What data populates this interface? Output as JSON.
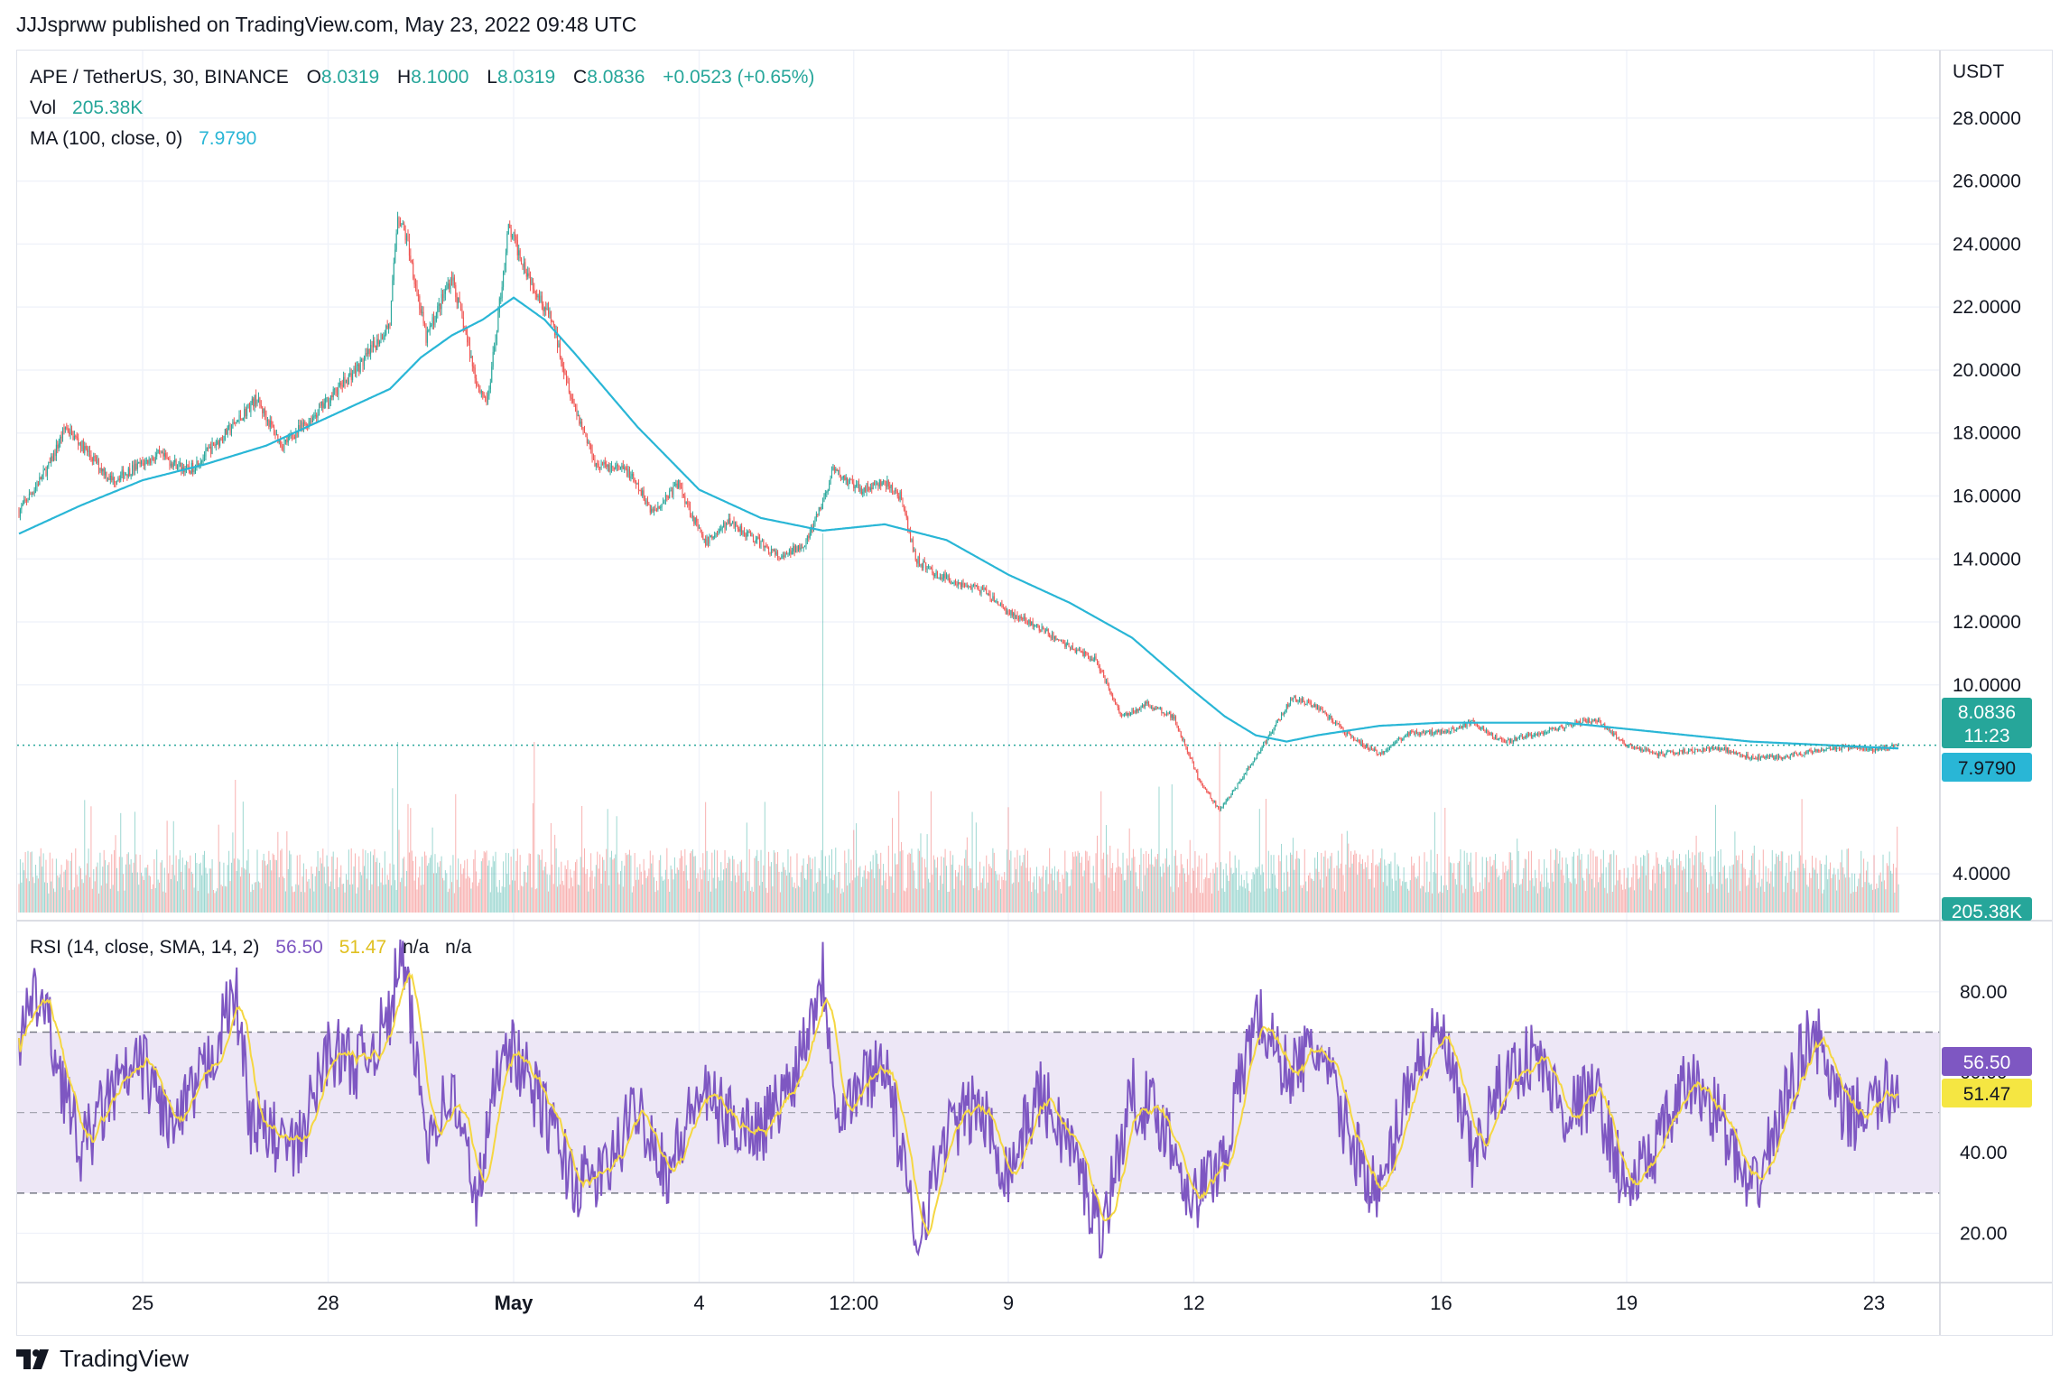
{
  "header": {
    "published": "JJJsprww published on TradingView.com, May 23, 2022 09:48 UTC"
  },
  "footer": {
    "brand": "TradingView"
  },
  "legend": {
    "symbol": "APE / TetherUS, 30, BINANCE",
    "o_label": "O",
    "o_value": "8.0319",
    "h_label": "H",
    "h_value": "8.1000",
    "l_label": "L",
    "l_value": "8.0319",
    "c_label": "C",
    "c_value": "8.0836",
    "change": "+0.0523 (+0.65%)",
    "vol_label": "Vol",
    "vol_value": "205.38K",
    "ma_label": "MA (100, close, 0)",
    "ma_value": "7.9790"
  },
  "rsi_legend": {
    "label": "RSI (14, close, SMA, 14, 2)",
    "rsi_value": "56.50",
    "sma_value": "51.47",
    "na1": "n/a",
    "na2": "n/a"
  },
  "badges": {
    "price": "8.0836",
    "countdown": "11:23",
    "ma": "7.9790",
    "volume": "205.38K",
    "rsi": "56.50",
    "rsi_sma": "51.47"
  },
  "colors": {
    "up": "#26a69a",
    "down": "#ef5350",
    "ma": "#29b6d6",
    "rsi": "#7e57c2",
    "rsi_sma": "#f5d742",
    "rsi_band": "#ede7f6",
    "grid": "#f0f3fa",
    "badge_price": "#26a69a"
  },
  "chart_data": [
    {
      "type": "candlestick",
      "title": "APE / TetherUS, 30, BINANCE",
      "y_unit": "USDT",
      "y_ticks": [
        "4.0000",
        "10.0000",
        "12.0000",
        "14.0000",
        "16.0000",
        "18.0000",
        "20.0000",
        "22.0000",
        "24.0000",
        "26.0000",
        "28.0000"
      ],
      "ylim": [
        3.5,
        29
      ],
      "x_ticks": [
        "25",
        "28",
        "May",
        "4",
        "12:00",
        "9",
        "12",
        "16",
        "19",
        "23"
      ],
      "x_range": [
        "2022-04-23",
        "2022-05-23 09:48"
      ],
      "close_anchors": [
        [
          "04-23 00:00",
          15.5
        ],
        [
          "04-23 12:00",
          17.0
        ],
        [
          "04-23 18:00",
          18.2
        ],
        [
          "04-24 12:00",
          16.5
        ],
        [
          "04-25 06:00",
          17.3
        ],
        [
          "04-25 18:00",
          16.8
        ],
        [
          "04-26 12:00",
          18.3
        ],
        [
          "04-26 20:00",
          19.1
        ],
        [
          "04-27 06:00",
          17.6
        ],
        [
          "04-27 18:00",
          18.5
        ],
        [
          "04-28 06:00",
          19.6
        ],
        [
          "04-28 14:00",
          20.3
        ],
        [
          "04-29 00:00",
          21.5
        ],
        [
          "04-29 03:00",
          25.0
        ],
        [
          "04-29 07:00",
          24.0
        ],
        [
          "04-29 14:00",
          21.0
        ],
        [
          "04-30 00:00",
          23.0
        ],
        [
          "04-30 10:00",
          19.5
        ],
        [
          "04-30 14:00",
          19.0
        ],
        [
          "04-30 22:00",
          24.5
        ],
        [
          "05-01 06:00",
          23.0
        ],
        [
          "05-01 15:00",
          21.5
        ],
        [
          "05-01 23:00",
          19.0
        ],
        [
          "05-02 08:00",
          17.0
        ],
        [
          "05-02 20:00",
          16.8
        ],
        [
          "05-03 06:00",
          15.5
        ],
        [
          "05-03 16:00",
          16.4
        ],
        [
          "05-04 02:00",
          14.5
        ],
        [
          "05-04 12:00",
          15.2
        ],
        [
          "05-04 22:00",
          14.6
        ],
        [
          "05-05 08:00",
          14.0
        ],
        [
          "05-05 18:00",
          14.6
        ],
        [
          "05-06 00:00",
          15.8
        ],
        [
          "05-06 04:00",
          16.8
        ],
        [
          "05-06 14:00",
          16.2
        ],
        [
          "05-07 00:00",
          16.4
        ],
        [
          "05-07 06:00",
          16.0
        ],
        [
          "05-07 12:00",
          14.0
        ],
        [
          "05-07 20:00",
          13.5
        ],
        [
          "05-08 06:00",
          13.2
        ],
        [
          "05-08 14:00",
          13.0
        ],
        [
          "05-09 00:00",
          12.3
        ],
        [
          "05-09 12:00",
          11.8
        ],
        [
          "05-10 00:00",
          11.2
        ],
        [
          "05-10 10:00",
          10.8
        ],
        [
          "05-10 20:00",
          9.0
        ],
        [
          "05-11 06:00",
          9.4
        ],
        [
          "05-11 16:00",
          9.0
        ],
        [
          "05-12 02:00",
          7.0
        ],
        [
          "05-12 10:00",
          6.0
        ],
        [
          "05-12 20:00",
          7.2
        ],
        [
          "05-13 04:00",
          8.2
        ],
        [
          "05-13 14:00",
          9.6
        ],
        [
          "05-14 00:00",
          9.3
        ],
        [
          "05-14 12:00",
          8.4
        ],
        [
          "05-15 00:00",
          7.8
        ],
        [
          "05-15 12:00",
          8.5
        ],
        [
          "05-16 00:00",
          8.5
        ],
        [
          "05-16 12:00",
          8.8
        ],
        [
          "05-17 00:00",
          8.2
        ],
        [
          "05-17 12:00",
          8.4
        ],
        [
          "05-18 00:00",
          8.7
        ],
        [
          "05-18 12:00",
          8.9
        ],
        [
          "05-19 00:00",
          8.1
        ],
        [
          "05-19 12:00",
          7.8
        ],
        [
          "05-20 00:00",
          7.9
        ],
        [
          "05-20 12:00",
          8.0
        ],
        [
          "05-21 00:00",
          7.7
        ],
        [
          "05-21 12:00",
          7.7
        ],
        [
          "05-22 00:00",
          7.9
        ],
        [
          "05-22 12:00",
          8.0
        ],
        [
          "05-23 00:00",
          7.95
        ],
        [
          "05-23 09:48",
          8.08
        ]
      ],
      "ma_anchors": [
        [
          "04-23 00:00",
          14.8
        ],
        [
          "04-24 00:00",
          15.7
        ],
        [
          "04-25 00:00",
          16.5
        ],
        [
          "04-26 00:00",
          17.0
        ],
        [
          "04-27 00:00",
          17.6
        ],
        [
          "04-28 00:00",
          18.5
        ],
        [
          "04-29 00:00",
          19.4
        ],
        [
          "04-29 12:00",
          20.4
        ],
        [
          "04-30 00:00",
          21.1
        ],
        [
          "04-30 12:00",
          21.6
        ],
        [
          "05-01 00:00",
          22.3
        ],
        [
          "05-01 12:00",
          21.6
        ],
        [
          "05-02 00:00",
          20.5
        ],
        [
          "05-03 00:00",
          18.2
        ],
        [
          "05-04 00:00",
          16.2
        ],
        [
          "05-05 00:00",
          15.3
        ],
        [
          "05-06 00:00",
          14.9
        ],
        [
          "05-07 00:00",
          15.1
        ],
        [
          "05-08 00:00",
          14.6
        ],
        [
          "05-09 00:00",
          13.5
        ],
        [
          "05-10 00:00",
          12.6
        ],
        [
          "05-11 00:00",
          11.5
        ],
        [
          "05-12 00:00",
          9.8
        ],
        [
          "05-12 12:00",
          9.0
        ],
        [
          "05-13 00:00",
          8.4
        ],
        [
          "05-13 12:00",
          8.2
        ],
        [
          "05-14 00:00",
          8.4
        ],
        [
          "05-15 00:00",
          8.7
        ],
        [
          "05-16 00:00",
          8.8
        ],
        [
          "05-18 00:00",
          8.8
        ],
        [
          "05-19 00:00",
          8.6
        ],
        [
          "05-21 00:00",
          8.2
        ],
        [
          "05-23 09:48",
          7.98
        ]
      ],
      "volume_spikes": [
        [
          "05-06 00:00",
          1.0
        ],
        [
          "04-29 03:00",
          0.45
        ],
        [
          "05-01 08:00",
          0.45
        ],
        [
          "04-26 12:00",
          0.35
        ],
        [
          "05-07 18:00",
          0.32
        ],
        [
          "05-10 12:00",
          0.32
        ],
        [
          "05-12 10:00",
          0.45
        ],
        [
          "05-13 04:00",
          0.3
        ]
      ]
    },
    {
      "type": "line",
      "title": "RSI (14, close, SMA, 14, 2)",
      "y_ticks": [
        "20.00",
        "40.00",
        "60.00",
        "80.00"
      ],
      "ylim": [
        10,
        95
      ],
      "bands": [
        30,
        50,
        70
      ],
      "rsi_anchors": [
        [
          "04-23 00:00",
          68
        ],
        [
          "04-23 08:00",
          80
        ],
        [
          "04-24 00:00",
          40
        ],
        [
          "04-24 12:00",
          55
        ],
        [
          "04-25 00:00",
          62
        ],
        [
          "04-25 12:00",
          45
        ],
        [
          "04-26 00:00",
          60
        ],
        [
          "04-26 12:00",
          80
        ],
        [
          "04-26 18:00",
          48
        ],
        [
          "04-27 12:00",
          40
        ],
        [
          "04-28 00:00",
          66
        ],
        [
          "04-28 12:00",
          62
        ],
        [
          "04-29 00:00",
          73
        ],
        [
          "04-29 04:00",
          92
        ],
        [
          "04-29 14:00",
          45
        ],
        [
          "04-30 00:00",
          55
        ],
        [
          "04-30 10:00",
          28
        ],
        [
          "04-30 20:00",
          70
        ],
        [
          "05-01 12:00",
          50
        ],
        [
          "05-02 00:00",
          32
        ],
        [
          "05-02 12:00",
          35
        ],
        [
          "05-03 00:00",
          52
        ],
        [
          "05-03 12:00",
          35
        ],
        [
          "05-04 00:00",
          55
        ],
        [
          "05-04 12:00",
          48
        ],
        [
          "05-05 00:00",
          46
        ],
        [
          "05-05 12:00",
          58
        ],
        [
          "05-06 00:00",
          85
        ],
        [
          "05-06 06:00",
          50
        ],
        [
          "05-07 00:00",
          64
        ],
        [
          "05-07 12:00",
          18
        ],
        [
          "05-08 00:00",
          45
        ],
        [
          "05-08 12:00",
          52
        ],
        [
          "05-09 00:00",
          35
        ],
        [
          "05-09 12:00",
          55
        ],
        [
          "05-10 00:00",
          42
        ],
        [
          "05-10 12:00",
          20
        ],
        [
          "05-11 00:00",
          55
        ],
        [
          "05-11 12:00",
          48
        ],
        [
          "05-12 00:00",
          28
        ],
        [
          "05-12 12:00",
          40
        ],
        [
          "05-13 00:00",
          75
        ],
        [
          "05-13 12:00",
          60
        ],
        [
          "05-14 00:00",
          66
        ],
        [
          "05-14 12:00",
          45
        ],
        [
          "05-15 00:00",
          28
        ],
        [
          "05-15 12:00",
          60
        ],
        [
          "05-16 00:00",
          70
        ],
        [
          "05-16 12:00",
          38
        ],
        [
          "05-17 00:00",
          58
        ],
        [
          "05-17 12:00",
          65
        ],
        [
          "05-18 00:00",
          50
        ],
        [
          "05-18 12:00",
          55
        ],
        [
          "05-19 00:00",
          30
        ],
        [
          "05-19 12:00",
          42
        ],
        [
          "05-20 00:00",
          58
        ],
        [
          "05-20 12:00",
          50
        ],
        [
          "05-21 00:00",
          28
        ],
        [
          "05-21 12:00",
          50
        ],
        [
          "05-22 00:00",
          72
        ],
        [
          "05-22 12:00",
          48
        ],
        [
          "05-23 00:00",
          52
        ],
        [
          "05-23 09:48",
          56.5
        ]
      ]
    }
  ]
}
